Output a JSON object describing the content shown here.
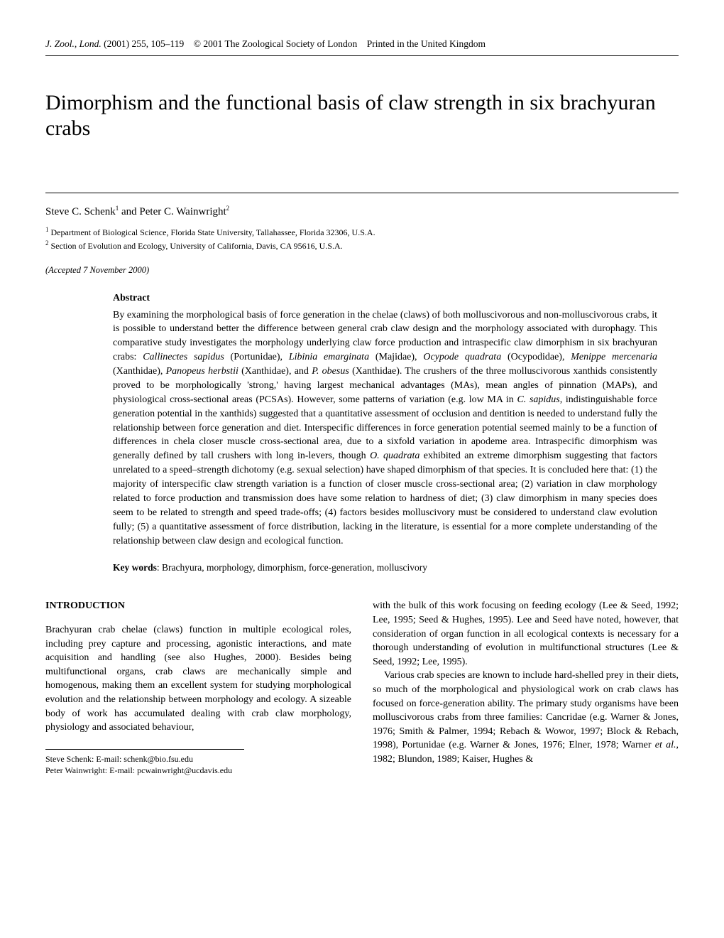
{
  "header": {
    "journal": "J. Zool., Lond.",
    "year_vol_pages": "(2001) 255, 105–119",
    "copyright": "© 2001 The Zoological Society of London",
    "printed": "Printed in the United Kingdom"
  },
  "title": "Dimorphism and the functional basis of claw strength in six brachyuran crabs",
  "authors": {
    "line": "Steve C. Schenk",
    "sup1": "1",
    "and": " and Peter C. Wainwright",
    "sup2": "2"
  },
  "affiliations": {
    "a1_sup": "1",
    "a1": " Department of Biological Science, Florida State University, Tallahassee, Florida 32306, U.S.A.",
    "a2_sup": "2",
    "a2": " Section of Evolution and Ecology, University of California, Davis, CA 95616, U.S.A."
  },
  "accepted": "(Accepted 7 November 2000)",
  "abstract": {
    "heading": "Abstract",
    "text_1": "By examining the morphological basis of force generation in the chelae (claws) of both molluscivorous and non-molluscivorous crabs, it is possible to understand better the difference between general crab claw design and the morphology associated with durophagy. This comparative study investigates the morphology underlying claw force production and intraspecific claw dimorphism in six brachyuran crabs: ",
    "sp1": "Callinectes sapidus",
    "t2": " (Portunidae), ",
    "sp2": "Libinia emarginata",
    "t3": " (Majidae), ",
    "sp3": "Ocypode quadrata",
    "t4": " (Ocypodidae), ",
    "sp4": "Menippe mercenaria",
    "t5": " (Xanthidae), ",
    "sp5": "Panopeus herbstii",
    "t6": " (Xanthidae), and ",
    "sp6": "P. obesus",
    "t7": " (Xanthidae). The crushers of the three molluscivorous xanthids consistently proved to be morphologically 'strong,' having largest mechanical advantages (MAs), mean angles of pinnation (MAPs), and physiological cross-sectional areas (PCSAs). However, some patterns of variation (e.g. low MA in ",
    "sp7": "C. sapidus",
    "t8": ", indistinguishable force generation potential in the xanthids) suggested that a quantitative assessment of occlusion and dentition is needed to understand fully the relationship between force generation and diet. Interspecific differences in force generation potential seemed mainly to be a function of differences in chela closer muscle cross-sectional area, due to a sixfold variation in apodeme area. Intraspecific dimorphism was generally defined by tall crushers with long in-levers, though ",
    "sp8": "O. quadrata",
    "t9": " exhibited an extreme dimorphism suggesting that factors unrelated to a speed–strength dichotomy (e.g. sexual selection) have shaped dimorphism of that species. It is concluded here that: (1) the majority of interspecific claw strength variation is a function of closer muscle cross-sectional area; (2) variation in claw morphology related to force production and transmission does have some relation to hardness of diet; (3) claw dimorphism in many species does seem to be related to strength and speed trade-offs; (4) factors besides molluscivory must be considered to understand claw evolution fully; (5) a quantitative assessment of force distribution, lacking in the literature, is essential for a more complete understanding of the relationship between claw design and ecological function."
  },
  "keywords": {
    "label": "Key words",
    "text": ": Brachyura, morphology, dimorphism, force-generation, molluscivory"
  },
  "intro_heading": "INTRODUCTION",
  "col_left": {
    "p1": "Brachyuran crab chelae (claws) function in multiple ecological roles, including prey capture and processing, agonistic interactions, and mate acquisition and handling (see also Hughes, 2000). Besides being multifunctional organs, crab claws are mechanically simple and homogenous, making them an excellent system for studying morphological evolution and the relationship between morphology and ecology. A sizeable body of work has accumulated dealing with crab claw morphology, physiology and associated behaviour,"
  },
  "col_right": {
    "p1": "with the bulk of this work focusing on feeding ecology (Lee & Seed, 1992; Lee, 1995; Seed & Hughes, 1995). Lee and Seed have noted, however, that consideration of organ function in all ecological contexts is necessary for a thorough understanding of evolution in multifunctional structures (Lee & Seed, 1992; Lee, 1995).",
    "p2a": "Various crab species are known to include hard-shelled prey in their diets, so much of the morphological and physiological work on crab claws has focused on force-generation ability. The primary study organisms have been molluscivorous crabs from three families: Cancridae (e.g. Warner & Jones, 1976; Smith & Palmer, 1994; Rebach & Wowor, 1997; Block & Rebach, 1998), Portunidae (e.g. Warner & Jones, 1976; Elner, 1978; Warner ",
    "p2_ital": "et al.",
    "p2b": ", 1982; Blundon, 1989; Kaiser, Hughes &"
  },
  "correspondence": {
    "l1": "Steve Schenk: E-mail: schenk@bio.fsu.edu",
    "l2": "Peter Wainwright: E-mail: pcwainwright@ucdavis.edu"
  }
}
